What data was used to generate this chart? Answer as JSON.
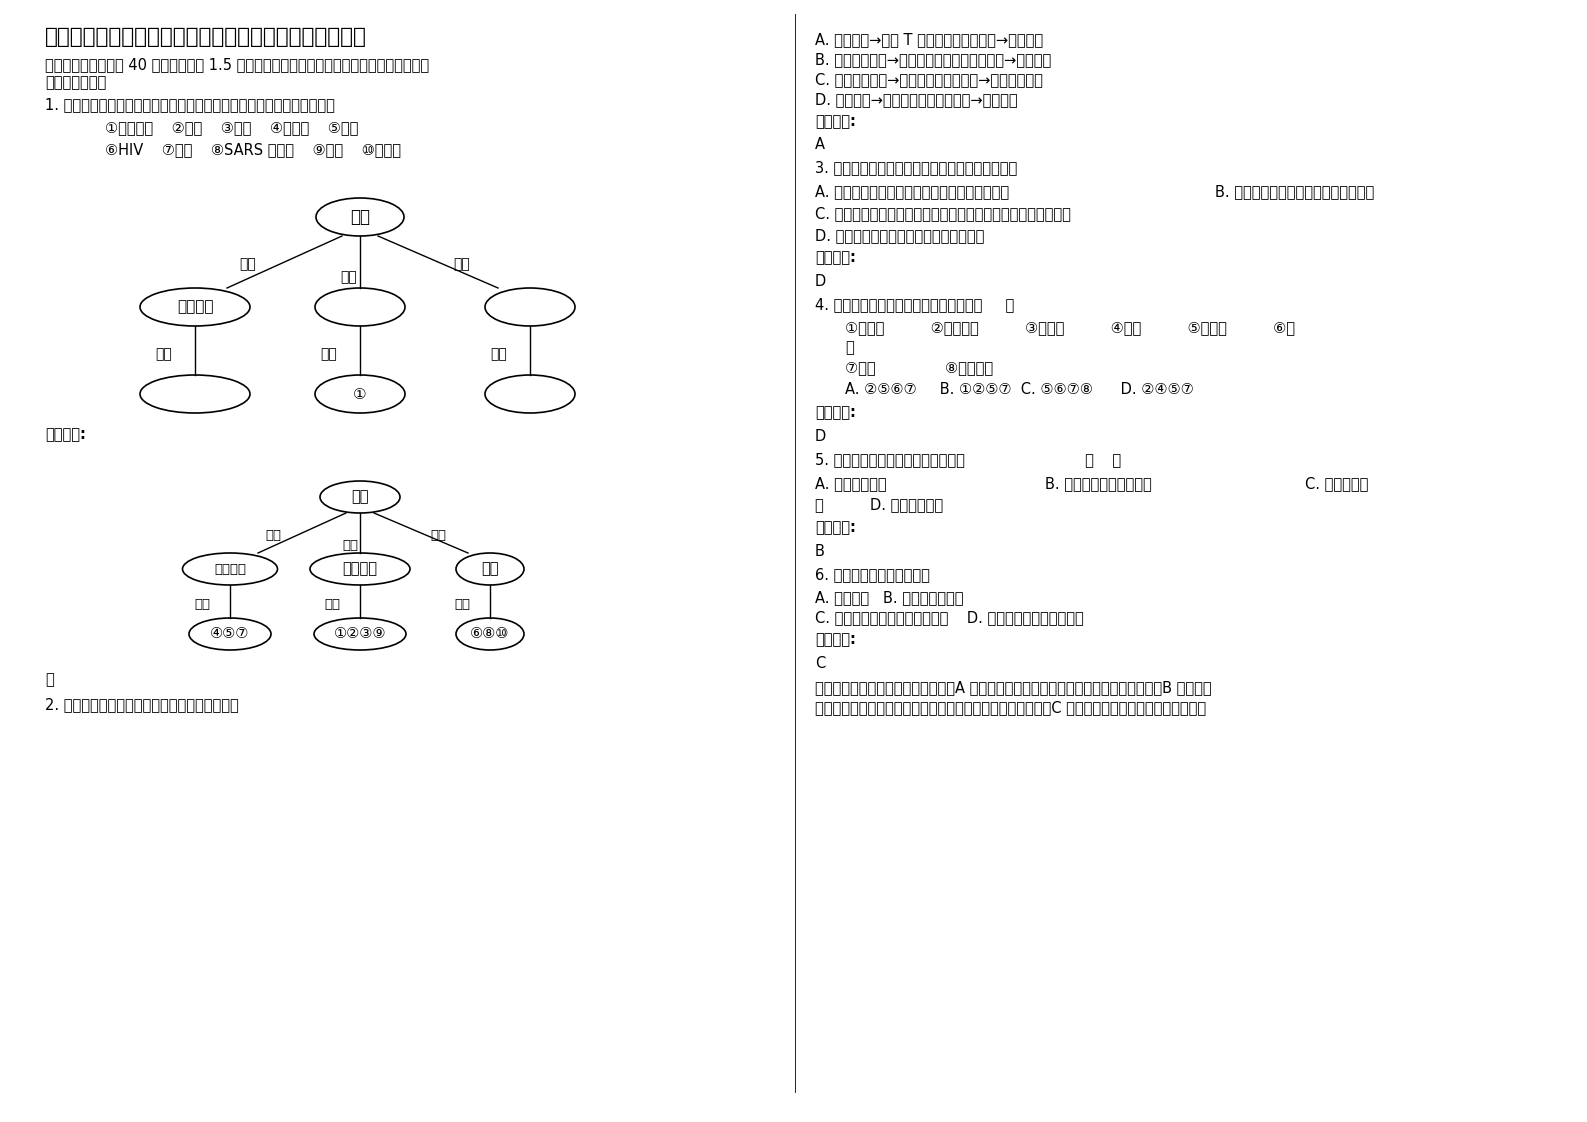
{
  "title": "四川省广元市白果乡九年制学校高一生物模拟试卷含解析",
  "section1_line1": "一、选择题（本题共 40 小题，每小题 1.5 分。在每小题给出的四个选项中，只有一项是符合",
  "section1_line2": "题目要求的。）",
  "q1_text": "1. 请完成下面的概念图，并将下列生物或结构对应的序号填入概念图中。",
  "q1_items_row1": "①大肠杆菌    ②发菜    ③蓝藻    ④酵母菌    ⑤霉菌",
  "q1_items_row2": "⑥HIV    ⑦水绵    ⑧SARS 病原体    ⑨细菌    ⑩噬菌体",
  "ref_answer": "参考答案:",
  "lue": "略",
  "q2_text": "2. 有关生物体对刺激做出反应的表述，错误的是",
  "q2_A": "A. 病毒感染→人体 T 细胞分泌特异性抗体→清除病毒",
  "q2_B": "B. 外界温度降低→哺乳动物体温调节中枢兴奋→体温稳定",
  "q2_C": "C. 摄入高糖食品→人体胰岛素分泌增加→血糖水平回落",
  "q2_D": "D. 单侧光照→植物体生长素重新分布→向光弯曲",
  "ref_answer2": "参考答案:",
  "ans2": "A",
  "q3_text": "3. 下列有关高倍镜下观察线粒体的叙述，错误的是",
  "q3_A": "A. 低倍镜下找到细胞中的线粒体后，换上高倍镜",
  "q3_B": "B. 高倍镜下观察的是生活状态的线粒体",
  "q3_C": "C. 用健那绿染色剂将线粒体染成蓝绿色，线粒体保持活性数小时",
  "q3_D": "D. 观察线粒体时所取的材料是新鲜菠菜叶",
  "ref_answer3": "参考答案:",
  "ans3": "D",
  "q4_text": "4. 下列物质中，不在核糖体上合成的是（     ）",
  "q4_items1": "①淀粉酶          ②核糖核酸          ③胰岛素          ④脂肪          ⑤赖氨酸          ⑥抗",
  "q4_items2": "体",
  "q4_items3": "⑦淀粉               ⑧血红蛋白",
  "q4_choices": "A. ②⑤⑥⑦     B. ①②⑤⑦  C. ⑤⑥⑦⑧      D. ②④⑤⑦",
  "ref_answer4": "参考答案:",
  "ans4": "D",
  "q5_text": "5. 下列各项中，不具有细胞结构的是                          （    ）",
  "q5_A": "A. 细菌和变形虫",
  "q5_B": "B. 烟草花叶病毒和噬菌体",
  "q5_C": "C. 真菌和草履",
  "q5_D": "虫          D. 蓝藻和乳酸菌",
  "ref_answer5": "参考答案:",
  "ans5": "B",
  "q6_text": "6. 下列哪项不属于生命系统",
  "q6_AB": "A. 一只青蛙   B. 青蛙的表皮细胞",
  "q6_CD": "C. 表皮细胞中的水和蛋白质分子    D. 生活在池塘中的各种生物",
  "ref_answer6": "参考答案:",
  "ans6": "C",
  "q6_explain1": "一只青蛙属于生命系统的个体层次，A 正确；青蛙的表皮细胞属于生命系统的细胞层次，B 正确；表",
  "q6_explain2": "皮细胞中的水和蛋白质分子属于系统，但是不属于生命系统，C 错误；生活在池塘中的各种生物属于"
}
